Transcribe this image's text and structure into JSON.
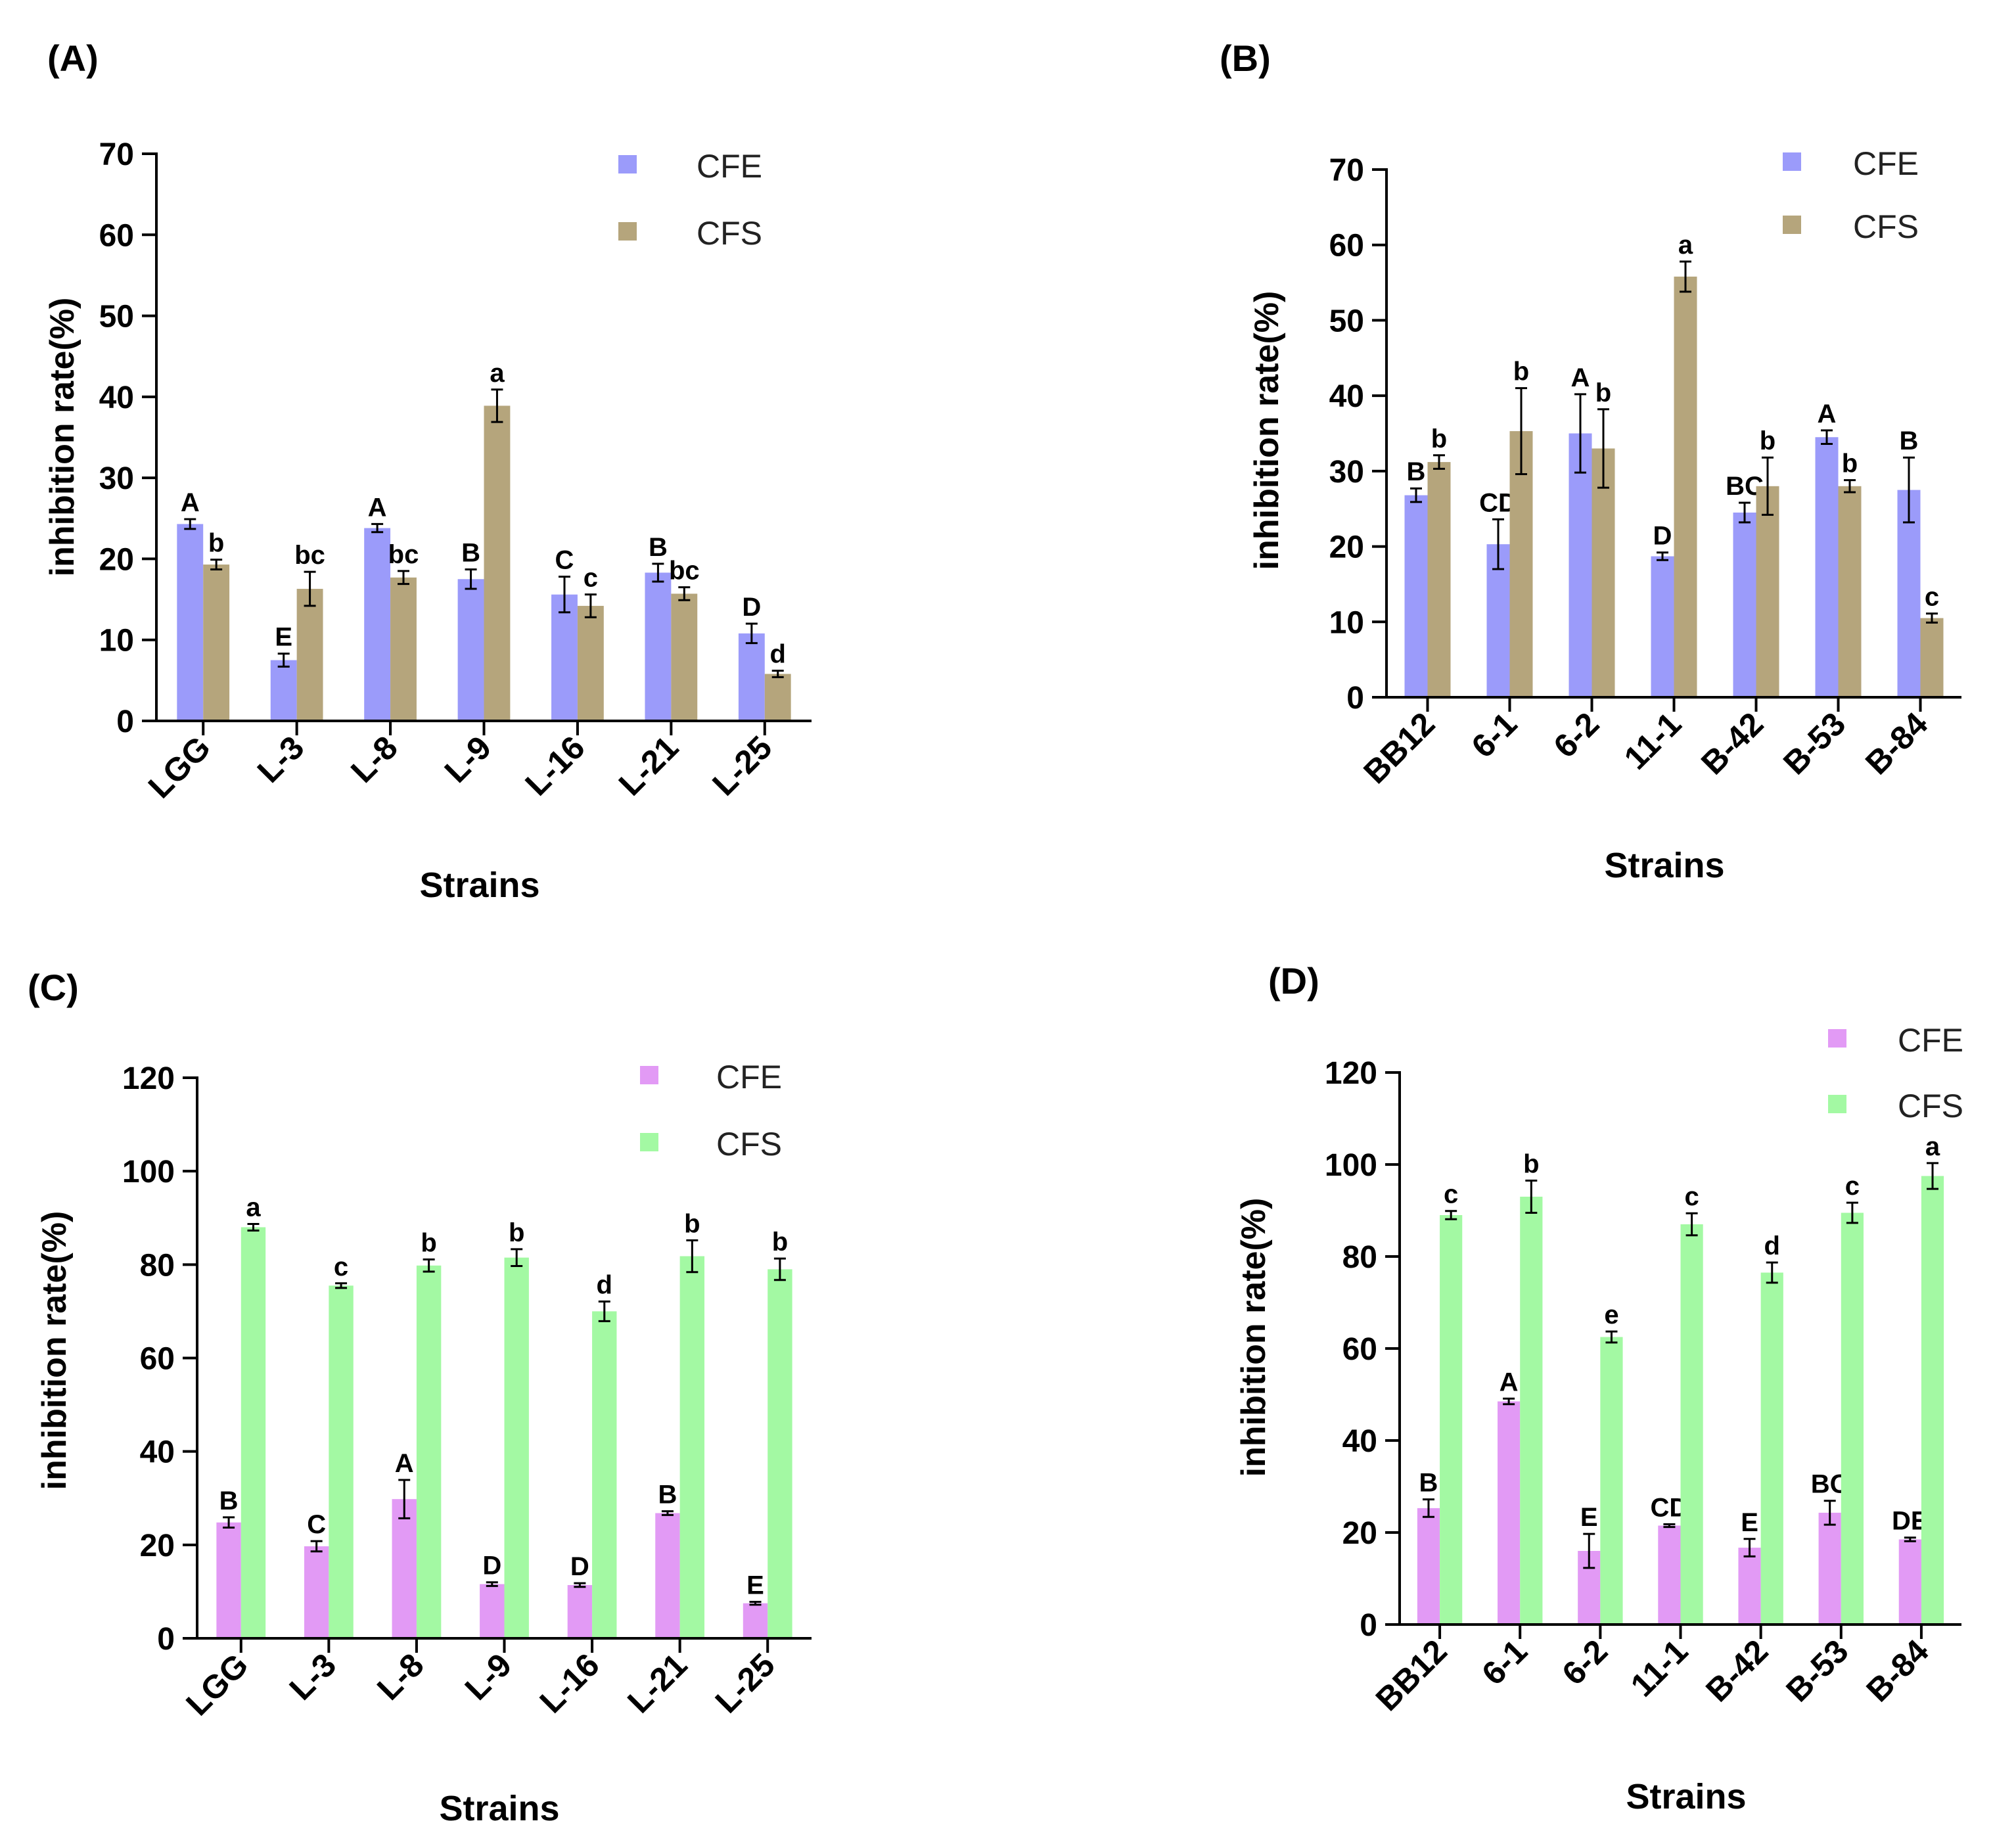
{
  "figure": {
    "background": "#ffffff"
  },
  "chart_data": [
    {
      "panel": "(A)",
      "type": "bar",
      "ylabel": "inhibition rate(%)",
      "xlabel": "Strains",
      "ylim": [
        0,
        70
      ],
      "yticks": [
        "0",
        "10",
        "20",
        "30",
        "40",
        "50",
        "60",
        "70"
      ],
      "categories": [
        "LGG",
        "L-3",
        "L-8",
        "L-9",
        "L-16",
        "L-21",
        "L-25"
      ],
      "legend_position": "top-right",
      "grid": false,
      "series": [
        {
          "name": "CFE",
          "color": "#9b9bfa",
          "values": [
            24.3,
            7.5,
            23.8,
            17.5,
            15.6,
            18.3,
            10.8
          ],
          "errors": [
            0.6,
            0.8,
            0.5,
            1.2,
            2.2,
            1.1,
            1.2
          ],
          "labels": [
            "A",
            "E",
            "A",
            "B",
            "C",
            "B",
            "D"
          ]
        },
        {
          "name": "CFS",
          "color": "#b5a57c",
          "values": [
            19.3,
            16.3,
            17.7,
            38.9,
            14.2,
            15.7,
            5.8
          ],
          "errors": [
            0.6,
            2.1,
            0.8,
            2.0,
            1.4,
            0.8,
            0.4
          ],
          "labels": [
            "b",
            "bc",
            "bc",
            "a",
            "c",
            "bc",
            "d"
          ]
        }
      ]
    },
    {
      "panel": "(B)",
      "type": "bar",
      "ylabel": "inhibition rate(%)",
      "xlabel": "Strains",
      "ylim": [
        0,
        70
      ],
      "yticks": [
        "0",
        "10",
        "20",
        "30",
        "40",
        "50",
        "60",
        "70"
      ],
      "categories": [
        "BB12",
        "6-1",
        "6-2",
        "11-1",
        "B-42",
        "B-53",
        "B-84"
      ],
      "legend_position": "top-right",
      "grid": false,
      "series": [
        {
          "name": "CFE",
          "color": "#9b9bfa",
          "values": [
            26.8,
            20.3,
            35.0,
            18.7,
            24.5,
            34.5,
            27.5
          ],
          "errors": [
            0.9,
            3.3,
            5.2,
            0.5,
            1.3,
            0.9,
            4.3
          ],
          "labels": [
            "B",
            "CD",
            "A",
            "D",
            "BC",
            "A",
            "B"
          ]
        },
        {
          "name": "CFS",
          "color": "#b5a57c",
          "values": [
            31.2,
            35.3,
            33.0,
            55.8,
            28.0,
            28.0,
            10.5
          ],
          "errors": [
            0.9,
            5.7,
            5.2,
            2.0,
            3.8,
            0.8,
            0.6
          ],
          "labels": [
            "b",
            "b",
            "b",
            "a",
            "b",
            "b",
            "c"
          ]
        }
      ]
    },
    {
      "panel": "(C)",
      "type": "bar",
      "ylabel": "inhibition rate(%)",
      "xlabel": "Strains",
      "ylim": [
        0,
        120
      ],
      "yticks": [
        "0",
        "20",
        "40",
        "60",
        "80",
        "100",
        "120"
      ],
      "categories": [
        "LGG",
        "L-3",
        "L-8",
        "L-9",
        "L-16",
        "L-21",
        "L-25"
      ],
      "legend_position": "top-right",
      "grid": false,
      "series": [
        {
          "name": "CFE",
          "color": "#e29af5",
          "values": [
            24.8,
            19.7,
            29.8,
            11.6,
            11.4,
            26.8,
            7.5
          ],
          "errors": [
            1.1,
            1.1,
            4.1,
            0.4,
            0.4,
            0.4,
            0.3
          ],
          "labels": [
            "B",
            "C",
            "A",
            "D",
            "D",
            "B",
            "E"
          ]
        },
        {
          "name": "CFS",
          "color": "#a3f9a3",
          "values": [
            88.0,
            75.5,
            79.8,
            81.5,
            70.0,
            81.8,
            79.0
          ],
          "errors": [
            0.7,
            0.5,
            1.3,
            1.8,
            2.1,
            3.4,
            2.3
          ],
          "labels": [
            "a",
            "c",
            "b",
            "b",
            "d",
            "b",
            "b"
          ]
        }
      ]
    },
    {
      "panel": "(D)",
      "type": "bar",
      "ylabel": "inhibition rate(%)",
      "xlabel": "Strains",
      "ylim": [
        0,
        120
      ],
      "yticks": [
        "0",
        "20",
        "40",
        "60",
        "80",
        "100",
        "120"
      ],
      "categories": [
        "BB12",
        "6-1",
        "6-2",
        "11-1",
        "B-42",
        "B-53",
        "B-84"
      ],
      "legend_position": "top-right",
      "grid": false,
      "series": [
        {
          "name": "CFE",
          "color": "#e29af5",
          "values": [
            25.3,
            48.5,
            16.0,
            21.5,
            16.7,
            24.3,
            18.5
          ],
          "errors": [
            1.9,
            0.6,
            3.7,
            0.3,
            1.9,
            2.6,
            0.4
          ],
          "labels": [
            "B",
            "A",
            "E",
            "CD",
            "E",
            "BC",
            "DE"
          ]
        },
        {
          "name": "CFS",
          "color": "#a3f9a3",
          "values": [
            89.0,
            93.0,
            62.5,
            87.0,
            76.5,
            89.5,
            97.5
          ],
          "errors": [
            0.9,
            3.5,
            1.2,
            2.4,
            2.2,
            2.2,
            2.8
          ],
          "labels": [
            "c",
            "b",
            "e",
            "c",
            "d",
            "c",
            "a"
          ]
        }
      ]
    }
  ]
}
